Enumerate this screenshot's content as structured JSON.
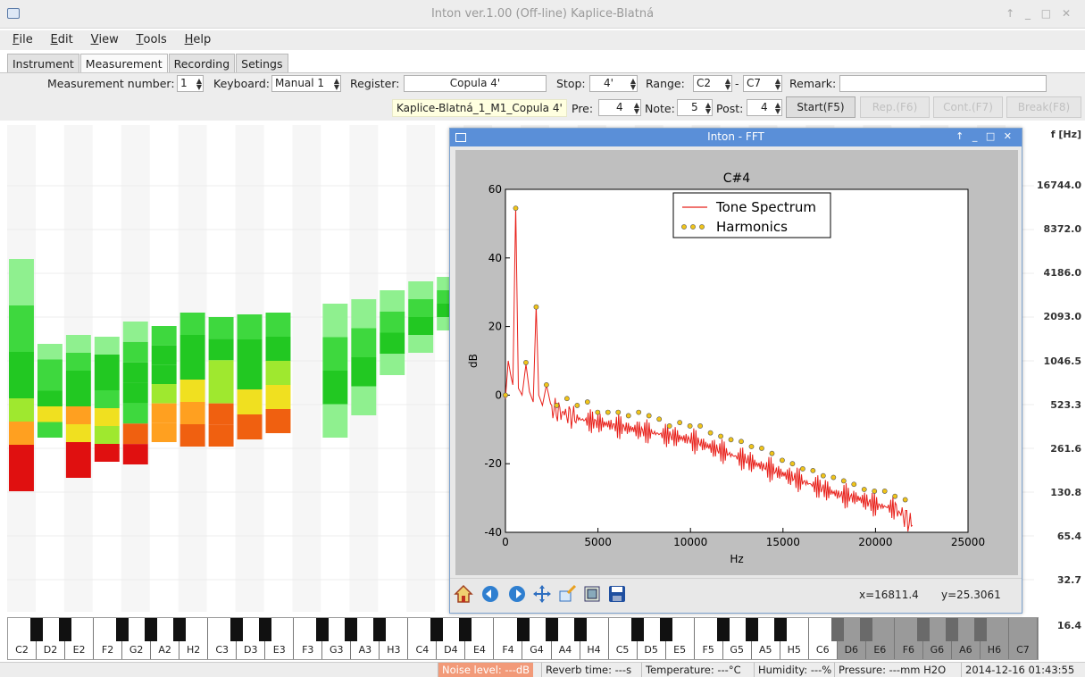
{
  "window": {
    "title": "Inton ver.1.00 (Off-line) Kaplice-Blatná",
    "controls": "↑ _ □ ✕"
  },
  "menu": {
    "file": {
      "accel": "F",
      "rest": "ile"
    },
    "edit": {
      "accel": "E",
      "rest": "dit"
    },
    "view": {
      "accel": "V",
      "rest": "iew"
    },
    "tools": {
      "accel": "T",
      "rest": "ools"
    },
    "help": {
      "accel": "H",
      "rest": "elp"
    }
  },
  "tabs": {
    "instrument": "Instrument",
    "measurement": "Measurement",
    "recording": "Recording",
    "setings": "Setings"
  },
  "row1": {
    "measurement_number_label": "Measurement number:",
    "measurement_number": "1",
    "keyboard_label": "Keyboard:",
    "keyboard": "Manual 1",
    "register_label": "Register:",
    "register": "Copula 4'",
    "stop_label": "Stop:",
    "stop": "4'",
    "range_label": "Range:",
    "range_from": "C2",
    "range_dash": "-",
    "range_to": "C7",
    "remark_label": "Remark:",
    "remark": ""
  },
  "row2": {
    "file_name": "Kaplice-Blatná_1_M1_Copula 4'",
    "pre_label": "Pre:",
    "pre": "4",
    "note_label": "Note:",
    "note": "5",
    "post_label": "Post:",
    "post": "4",
    "start": "Start(F5)",
    "rep": "Rep.(F6)",
    "cont": "Cont.(F7)",
    "break": "Break(F8)"
  },
  "freq_axis": {
    "unit": "f [Hz]",
    "labels": [
      "16744.0",
      "8372.0",
      "4186.0",
      "2093.0",
      "1046.5",
      "523.3",
      "261.6",
      "130.8",
      "65.4",
      "32.7",
      "16.4"
    ]
  },
  "keyboard_keys": [
    "C2",
    "D2",
    "E2",
    "F2",
    "G2",
    "A2",
    "H2",
    "C3",
    "D3",
    "E3",
    "F3",
    "G3",
    "A3",
    "H3",
    "C4",
    "D4",
    "E4",
    "F4",
    "G4",
    "A4",
    "H4",
    "C5",
    "D5",
    "E5",
    "F5",
    "G5",
    "A5",
    "H5",
    "C6",
    "D6",
    "E6",
    "F6",
    "G6",
    "A6",
    "H6",
    "C7"
  ],
  "statusbar": {
    "noise": "Noise level: ---dB",
    "reverb": "Reverb time: ---s",
    "temperature": "Temperature: ---°C",
    "humidity": "Humidity: ---%",
    "pressure": "Pressure: ---mm H2O",
    "datetime": "2014-12-16 01:43:55"
  },
  "fft_window": {
    "title": "Inton - FFT",
    "controls": "↑ _ □ ✕",
    "coord_x": "x=16811.4",
    "coord_y": "y=25.3061"
  },
  "colors": {
    "accent": "#5a8fd8",
    "spectrum": "#e8201a",
    "harmonic": "#f0c419",
    "warn": "#f29a79"
  },
  "chart_data": {
    "type": "line",
    "title": "C#4",
    "xlabel": "Hz",
    "ylabel": "dB",
    "xlim": [
      0,
      25000
    ],
    "ylim": [
      -40,
      60
    ],
    "xticks": [
      0,
      5000,
      10000,
      15000,
      20000,
      25000
    ],
    "yticks": [
      -40,
      -20,
      0,
      20,
      40,
      60
    ],
    "legend": {
      "placement": "top-center",
      "spectrum": "Tone Spectrum",
      "harmonics": "Harmonics"
    },
    "series": [
      {
        "name": "Tone Spectrum",
        "x": [
          0,
          150,
          280,
          400,
          554,
          700,
          900,
          1108,
          1300,
          1500,
          1662,
          1800,
          2000,
          2216,
          2500,
          3000,
          3500,
          4000,
          5000,
          6000,
          7000,
          8000,
          9000,
          10000,
          11000,
          12000,
          13000,
          14000,
          15000,
          16000,
          17000,
          18000,
          19000,
          20000,
          21000,
          21500,
          22000
        ],
        "y": [
          -1,
          10,
          6,
          3,
          55,
          2,
          0,
          9,
          1,
          -2,
          26,
          0,
          -3,
          3,
          -4,
          -5,
          -6,
          -7,
          -8,
          -9,
          -10,
          -11,
          -12,
          -13,
          -15,
          -17,
          -19,
          -21,
          -23,
          -25,
          -27,
          -29,
          -30,
          -32,
          -33,
          -35,
          -38
        ]
      },
      {
        "name": "Harmonics",
        "x": [
          0,
          554,
          1108,
          1662,
          2216,
          2770,
          3324,
          3878,
          4432,
          4986,
          5540,
          6094,
          6648,
          7202,
          7756,
          8310,
          8864,
          9418,
          9972,
          10526,
          11080,
          11634,
          12188,
          12742,
          13296,
          13850,
          14404,
          14958,
          15512,
          16066,
          16620,
          17174,
          17728,
          18282,
          18836,
          19390,
          19944,
          20498,
          21052,
          21606
        ],
        "y": [
          0,
          54.5,
          9.5,
          25.7,
          3,
          -3,
          -1,
          -3,
          -2,
          -5,
          -5,
          -5,
          -6,
          -5,
          -6,
          -7,
          -9,
          -8,
          -9,
          -9,
          -11,
          -12,
          -13,
          -13.5,
          -15,
          -15.5,
          -17,
          -19,
          -20,
          -21.5,
          -22,
          -23.5,
          -24,
          -25,
          -26,
          -27.5,
          -28,
          -28,
          -29.5,
          -30.5
        ]
      }
    ]
  }
}
